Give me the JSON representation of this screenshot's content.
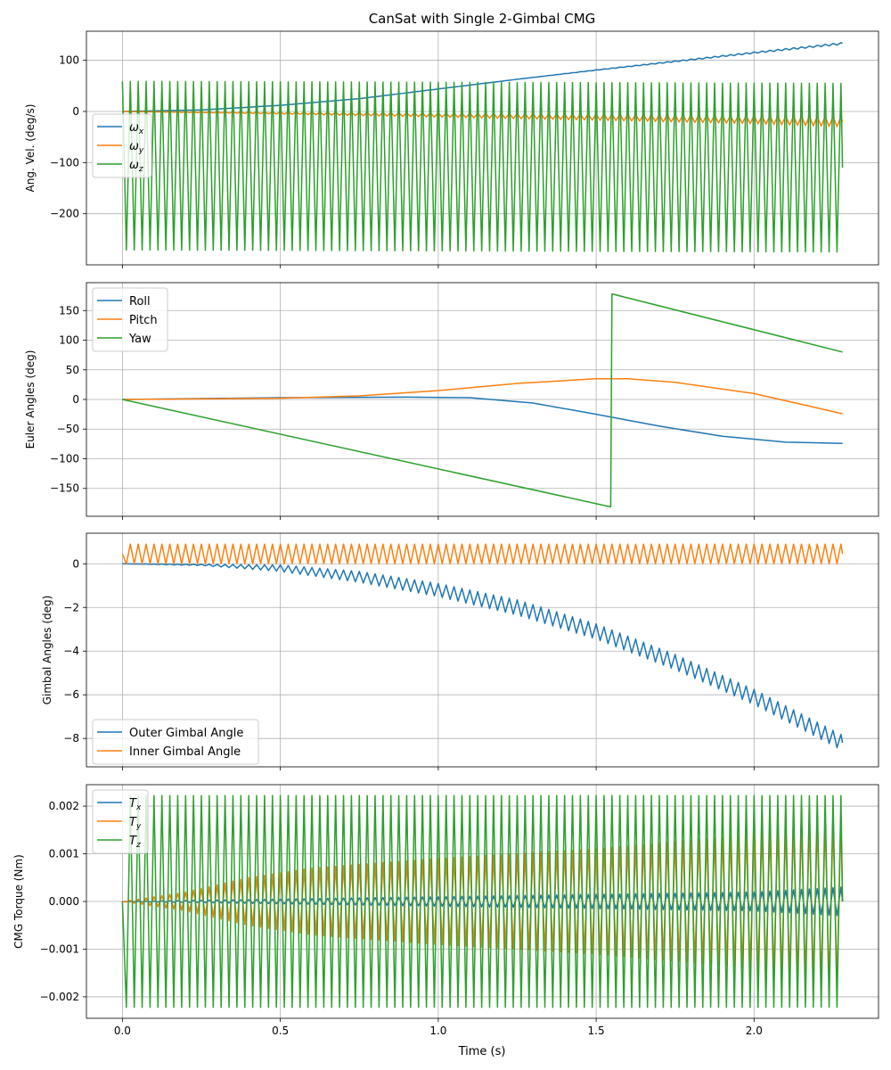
{
  "figure": {
    "title": "CanSat with Single 2-Gimbal CMG",
    "xlabel": "Time (s)"
  },
  "chart_data": [
    {
      "type": "line",
      "ylabel": "Ang. Vel. (deg/s)",
      "xlim": [
        -0.114,
        2.394
      ],
      "ylim": [
        -300,
        157
      ],
      "x_ticks": [
        0.0,
        0.5,
        1.0,
        1.5,
        2.0
      ],
      "x_tick_labels": [
        "0.0",
        "0.5",
        "1.0",
        "1.5",
        "2.0"
      ],
      "y_ticks": [
        100,
        0,
        -100,
        -200
      ],
      "y_tick_labels": [
        "100",
        "0",
        "−100",
        "−200"
      ],
      "grid": true,
      "legend": "center-left",
      "series": [
        {
          "name": "ωx",
          "color": "#1f77b4",
          "t": [
            0,
            0.25,
            0.5,
            0.75,
            1.0,
            1.25,
            1.5,
            1.75,
            2.0,
            2.28
          ],
          "values": [
            0,
            3,
            12,
            25,
            44,
            63,
            81,
            98,
            115,
            133
          ],
          "osc_amp": [
            0,
            0,
            0,
            0,
            0,
            0,
            0.5,
            1,
            1.5,
            2
          ],
          "osc_freq": 40
        },
        {
          "name": "ωy",
          "color": "#ff7f0e",
          "t": [
            0,
            0.5,
            1.0,
            1.5,
            2.0,
            2.28
          ],
          "values": [
            0,
            -3,
            -7,
            -11,
            -16,
            -20
          ],
          "osc_amp": [
            0,
            2,
            4,
            6,
            8,
            10
          ],
          "osc_freq": 40
        },
        {
          "name": "ωz",
          "color": "#2ca02c",
          "t": [
            0,
            2.28
          ],
          "values": [
            -106,
            -110
          ],
          "osc_amp": [
            165,
            165
          ],
          "osc_freq": 40
        }
      ]
    },
    {
      "type": "line",
      "ylabel": "Euler Angles (deg)",
      "xlim": [
        -0.114,
        2.394
      ],
      "ylim": [
        -197,
        197
      ],
      "x_ticks": [
        0.0,
        0.5,
        1.0,
        1.5,
        2.0
      ],
      "y_ticks": [
        150,
        100,
        50,
        0,
        -50,
        -100,
        -150
      ],
      "y_tick_labels": [
        "150",
        "100",
        "50",
        "0",
        "−50",
        "−100",
        "−150"
      ],
      "grid": true,
      "legend": "upper-left",
      "series": [
        {
          "name": "Roll",
          "color": "#1f77b4",
          "t": [
            0,
            0.5,
            0.9,
            1.1,
            1.3,
            1.5,
            1.7,
            1.9,
            2.1,
            2.28
          ],
          "values": [
            0,
            3,
            4,
            3,
            -6,
            -25,
            -45,
            -62,
            -72,
            -74
          ]
        },
        {
          "name": "Pitch",
          "color": "#ff7f0e",
          "t": [
            0,
            0.5,
            0.75,
            1.0,
            1.25,
            1.5,
            1.6,
            1.75,
            2.0,
            2.28
          ],
          "values": [
            0,
            2,
            6,
            15,
            27,
            35,
            35,
            29,
            10,
            -24
          ]
        },
        {
          "name": "Yaw",
          "color": "#2ca02c",
          "t": [
            0,
            1.545,
            1.546,
            1.55,
            2.28
          ],
          "values": [
            0,
            -181,
            -181,
            178,
            80
          ]
        }
      ]
    },
    {
      "type": "line",
      "ylabel": "Gimbal Angles (deg)",
      "xlim": [
        -0.114,
        2.394
      ],
      "ylim": [
        -9.3,
        1.4
      ],
      "x_ticks": [
        0.0,
        0.5,
        1.0,
        1.5,
        2.0
      ],
      "y_ticks": [
        0,
        -2,
        -4,
        -6,
        -8
      ],
      "y_tick_labels": [
        "0",
        "−2",
        "−4",
        "−6",
        "−8"
      ],
      "grid": true,
      "legend": "lower-left",
      "series": [
        {
          "name": "Outer Gimbal Angle",
          "color": "#1f77b4",
          "t": [
            0,
            0.25,
            0.5,
            0.75,
            1.0,
            1.25,
            1.5,
            1.75,
            2.0,
            2.28
          ],
          "values": [
            0,
            -0.05,
            -0.2,
            -0.6,
            -1.2,
            -2.0,
            -3.1,
            -4.5,
            -6.1,
            -8.2
          ],
          "osc_amp": [
            0,
            0.03,
            0.15,
            0.25,
            0.3,
            0.35,
            0.35,
            0.35,
            0.35,
            0.35
          ],
          "osc_freq": 40
        },
        {
          "name": "Inner Gimbal Angle",
          "color": "#ff7f0e",
          "t": [
            0,
            2.28
          ],
          "values": [
            0.45,
            0.45
          ],
          "osc_amp": [
            0.45,
            0.45
          ],
          "osc_freq": 40
        }
      ]
    },
    {
      "type": "line",
      "ylabel": "CMG Torque (Nm)",
      "xlim": [
        -0.114,
        2.394
      ],
      "ylim": [
        -0.00245,
        0.00245
      ],
      "x_ticks": [
        0.0,
        0.5,
        1.0,
        1.5,
        2.0
      ],
      "x_tick_labels": [
        "0.0",
        "0.5",
        "1.0",
        "1.5",
        "2.0"
      ],
      "y_ticks": [
        0.002,
        0.001,
        0.0,
        -0.001,
        -0.002
      ],
      "y_tick_labels": [
        "0.002",
        "0.001",
        "0.000",
        "−0.001",
        "−0.002"
      ],
      "grid": true,
      "legend": "upper-left",
      "series": [
        {
          "name": "Tx",
          "color": "#1f77b4",
          "t": [
            0,
            0.5,
            1.0,
            1.5,
            2.0,
            2.28
          ],
          "values": [
            0,
            0,
            0,
            0,
            0,
            0
          ],
          "osc_amp": [
            0,
            5e-05,
            0.0001,
            0.00015,
            0.0002,
            0.0003
          ],
          "osc_freq": 40
        },
        {
          "name": "Ty",
          "color": "#ff7f0e",
          "t": [
            0,
            0.2,
            0.4,
            0.6,
            0.8,
            1.0,
            1.5,
            2.0,
            2.28
          ],
          "values": [
            0,
            0,
            0,
            0,
            0,
            0,
            0,
            0,
            0
          ],
          "osc_amp": [
            0,
            0.0002,
            0.0005,
            0.0007,
            0.0008,
            0.0009,
            0.0011,
            0.0014,
            0.0017
          ],
          "osc_freq": 40
        },
        {
          "name": "Tz",
          "color": "#2ca02c",
          "t": [
            0,
            2.28
          ],
          "values": [
            0,
            0
          ],
          "osc_amp": [
            0.00222,
            0.00222
          ],
          "osc_freq": 40
        }
      ]
    }
  ]
}
